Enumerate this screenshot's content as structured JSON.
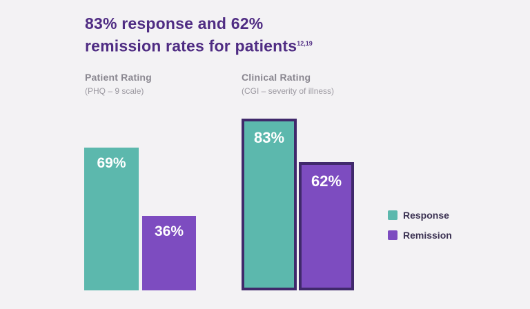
{
  "title": {
    "line1": "83% response and 62%",
    "line2": "remission rates for patients",
    "superscript": "12,19",
    "color": "#4f2c83"
  },
  "chart_data": {
    "type": "bar",
    "title": "83% response and 62% remission rates for patients",
    "title_superscript": "12,19",
    "categories": [
      "Patient Rating (PHQ – 9 scale)",
      "Clinical Rating (CGI – severity of illness)"
    ],
    "series": [
      {
        "name": "Response",
        "values": [
          69,
          83
        ]
      },
      {
        "name": "Remission",
        "values": [
          36,
          62
        ]
      }
    ],
    "ylim": [
      0,
      100
    ],
    "grid": false,
    "axes_visible": false,
    "legend_position": "right",
    "groups": [
      {
        "label": "Patient Rating",
        "sublabel": "(PHQ – 9 scale)",
        "highlighted": false,
        "bars": [
          {
            "series": "Response",
            "value": 69,
            "display": "69%"
          },
          {
            "series": "Remission",
            "value": 36,
            "display": "36%"
          }
        ]
      },
      {
        "label": "Clinical Rating",
        "sublabel": "(CGI – severity of illness)",
        "highlighted": true,
        "bars": [
          {
            "series": "Response",
            "value": 83,
            "display": "83%"
          },
          {
            "series": "Remission",
            "value": 62,
            "display": "62%"
          }
        ]
      }
    ],
    "legend": [
      {
        "label": "Response",
        "color": "#5cb8ad"
      },
      {
        "label": "Remission",
        "color": "#7d4cc0"
      }
    ],
    "colors": {
      "response": "#5cb8ad",
      "remission": "#7d4cc0",
      "highlight_border": "#40296b",
      "background": "#f3f2f4"
    }
  }
}
